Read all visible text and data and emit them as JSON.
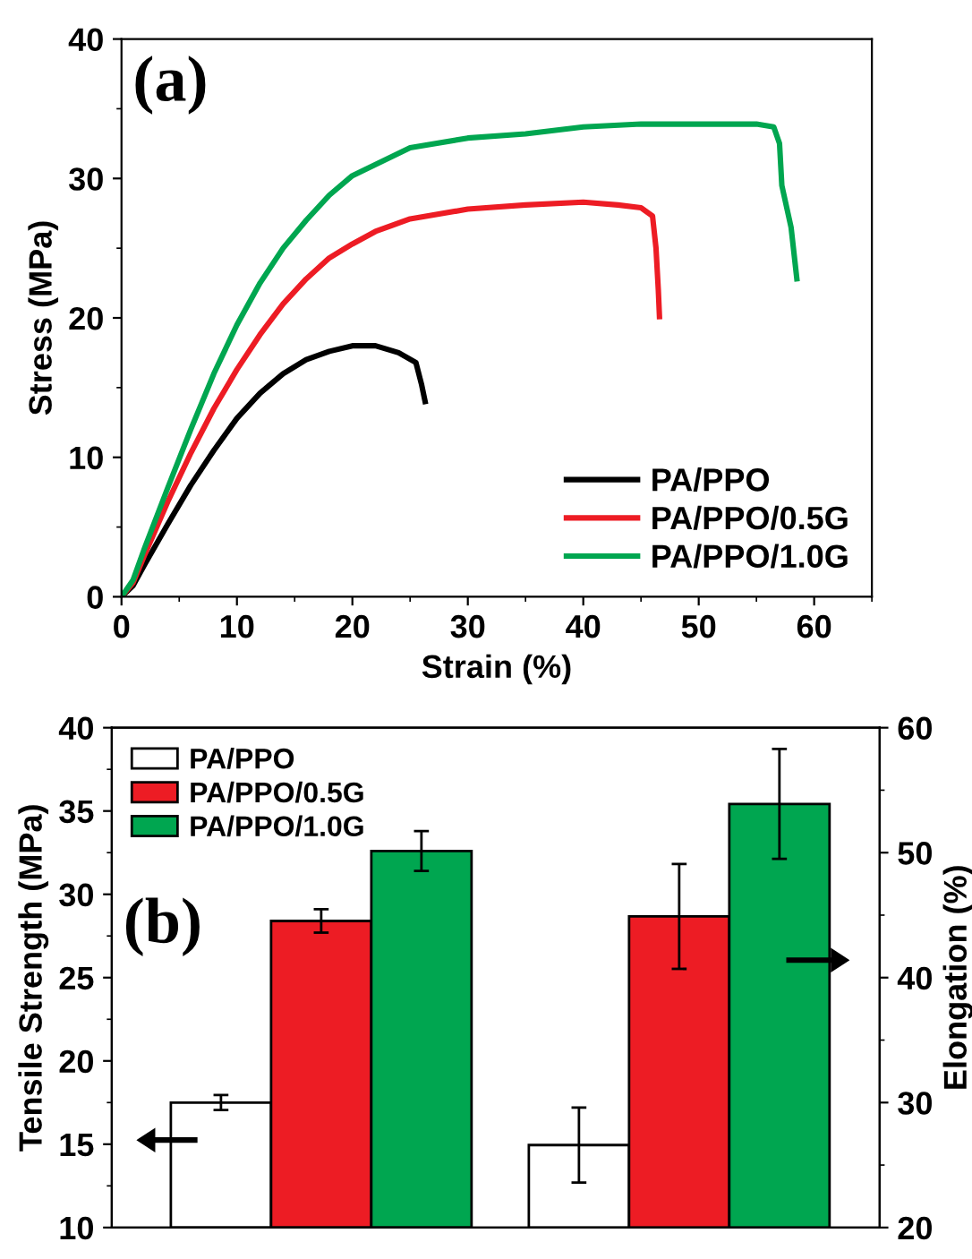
{
  "chart_data": [
    {
      "type": "line",
      "xlabel": "Strain (%)",
      "ylabel": "Stress (MPa)",
      "annotations": [
        "(a)"
      ],
      "xlim": [
        0,
        65
      ],
      "xticks": [
        0,
        10,
        20,
        30,
        40,
        50,
        60
      ],
      "ylim": [
        0,
        40
      ],
      "yticks": [
        0,
        10,
        20,
        30,
        40
      ],
      "grid": false,
      "legend": "bottom right",
      "marker": "none",
      "line_style": "solid",
      "series": [
        {
          "name": "PA/PPO",
          "color": "#000000",
          "x": [
            0,
            1,
            2,
            4,
            6,
            8,
            10,
            12,
            14,
            16,
            18,
            20,
            22,
            24,
            25.5,
            26,
            26.3
          ],
          "values": [
            0,
            0.8,
            2.3,
            5.2,
            8.0,
            10.5,
            12.8,
            14.6,
            16.0,
            17.0,
            17.6,
            18.0,
            18.0,
            17.5,
            16.8,
            15.2,
            14.0
          ]
        },
        {
          "name": "PA/PPO/0.5G",
          "color": "#ed1c24",
          "x": [
            0,
            1,
            2,
            4,
            6,
            8,
            10,
            12,
            14,
            16,
            18,
            20,
            22,
            25,
            30,
            35,
            40,
            43,
            45,
            46,
            46.3,
            46.5,
            46.6
          ],
          "values": [
            0,
            1.0,
            3.0,
            6.8,
            10.3,
            13.5,
            16.3,
            18.8,
            21.0,
            22.8,
            24.3,
            25.3,
            26.2,
            27.1,
            27.8,
            28.1,
            28.3,
            28.1,
            27.9,
            27.3,
            25.0,
            22.0,
            20.1
          ]
        },
        {
          "name": "PA/PPO/1.0G",
          "color": "#00a650",
          "x": [
            0,
            1,
            2,
            4,
            6,
            8,
            10,
            12,
            14,
            16,
            18,
            20,
            22,
            25,
            30,
            35,
            40,
            45,
            50,
            55,
            56.5,
            57,
            57.2,
            58,
            58.5
          ],
          "values": [
            0,
            1.2,
            3.5,
            7.8,
            12.0,
            16.0,
            19.5,
            22.5,
            25.0,
            27.0,
            28.8,
            30.2,
            31.0,
            32.2,
            32.9,
            33.2,
            33.7,
            33.9,
            33.9,
            33.9,
            33.7,
            32.5,
            29.5,
            26.5,
            22.8
          ]
        }
      ]
    },
    {
      "type": "bar",
      "ylabel": "Tensile Strength (MPa)",
      "y2label": "Elongation (%)",
      "annotations": [
        "(b)"
      ],
      "categories": [
        null,
        null
      ],
      "ylim": [
        10,
        40
      ],
      "yticks": [
        10,
        15,
        20,
        25,
        30,
        35,
        40
      ],
      "y2lim": [
        20,
        60
      ],
      "y2ticks": [
        20,
        30,
        40,
        50,
        60
      ],
      "grid": false,
      "legend": "top left",
      "series": [
        {
          "name": "PA/PPO",
          "color": "#ffffff",
          "axis": "y",
          "values": [
            17.5,
            null
          ],
          "errors": [
            0.45,
            null
          ]
        },
        {
          "name": "PA/PPO/0.5G",
          "color": "#ed1c24",
          "axis": "y",
          "values": [
            28.4,
            null
          ],
          "errors": [
            0.7,
            null
          ]
        },
        {
          "name": "PA/PPO/1.0G",
          "color": "#00a650",
          "axis": "y",
          "values": [
            32.6,
            null
          ],
          "errors": [
            1.2,
            null
          ]
        },
        {
          "color": "#ffffff",
          "axis": "y2",
          "values": [
            null,
            26.6
          ],
          "errors": [
            null,
            3.0
          ]
        },
        {
          "color": "#ed1c24",
          "axis": "y2",
          "values": [
            null,
            44.9
          ],
          "errors": [
            null,
            4.2
          ]
        },
        {
          "color": "#00a650",
          "axis": "y2",
          "values": [
            null,
            53.9
          ],
          "errors": [
            null,
            4.4
          ]
        }
      ]
    }
  ]
}
